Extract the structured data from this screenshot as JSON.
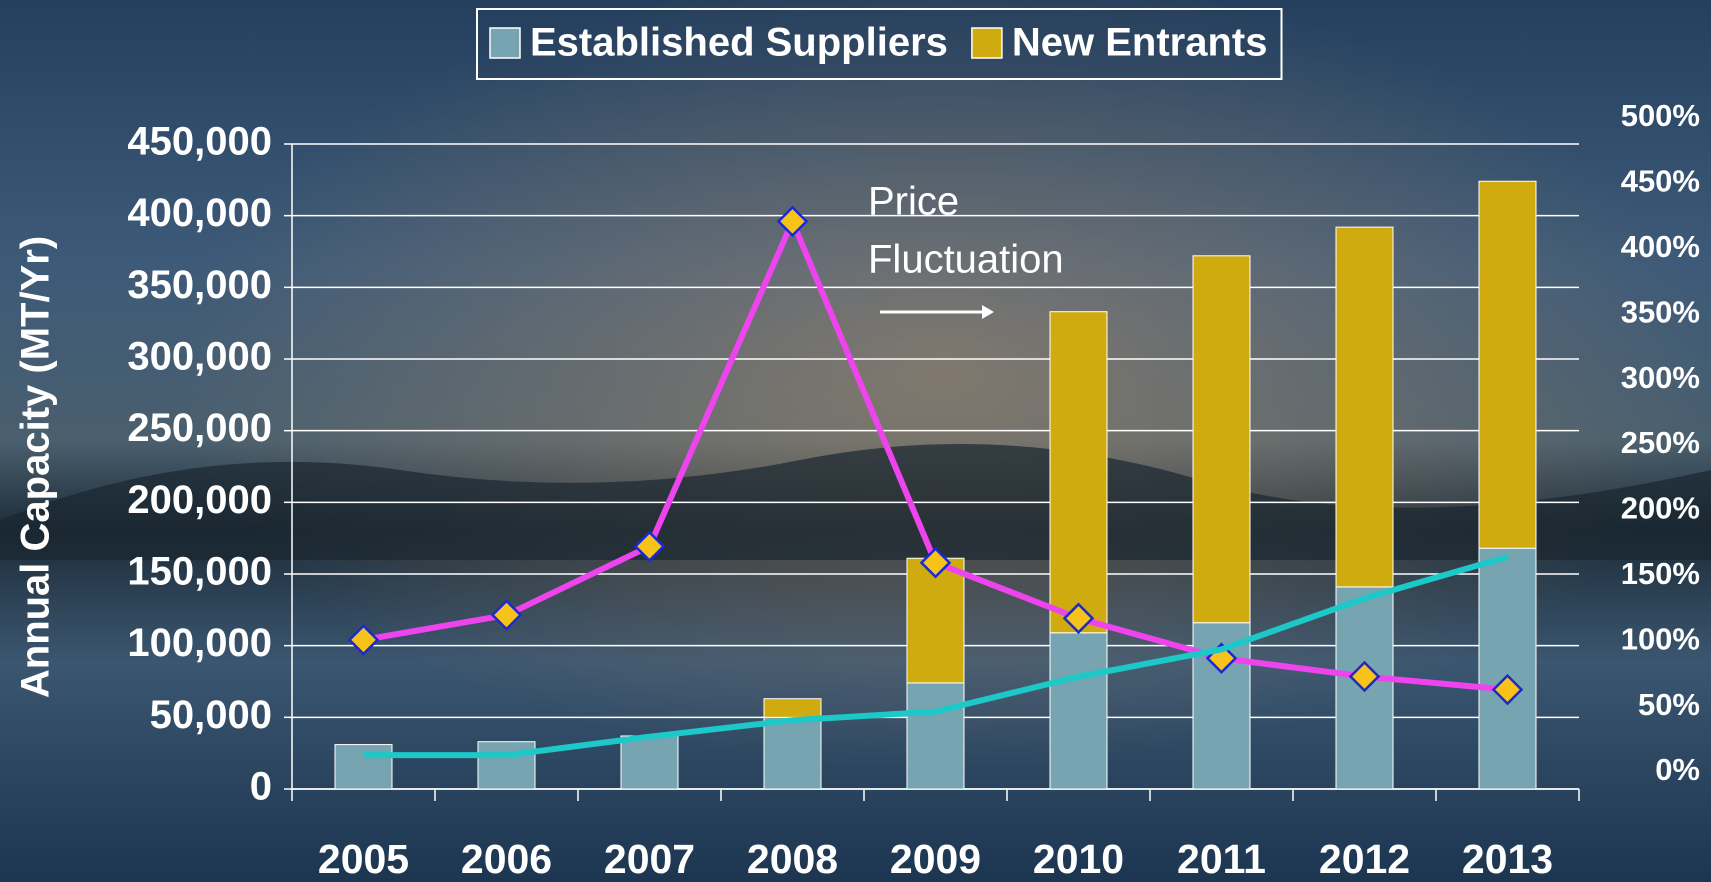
{
  "chart_data": {
    "type": "bar",
    "y_label": "Annual Capacity (MT/Yr)",
    "annotation": [
      "Price",
      "Fluctuation"
    ],
    "categories": [
      "2005",
      "2006",
      "2007",
      "2008",
      "2009",
      "2010",
      "2011",
      "2012",
      "2013"
    ],
    "series": [
      {
        "name": "Established Suppliers",
        "color": "#76a5b1",
        "values": [
          31000,
          33000,
          37000,
          50000,
          74000,
          109000,
          116000,
          141000,
          168000
        ]
      },
      {
        "name": "New Entrants",
        "color": "#cfab10",
        "values": [
          0,
          0,
          0,
          13000,
          87000,
          224000,
          256000,
          251000,
          256000
        ]
      },
      {
        "type": "line",
        "axis": "y2",
        "color": "#ee44ee",
        "marker": "diamond",
        "marker_color": "#f7c21a",
        "values": [
          101,
          120,
          172.5,
          421,
          160,
          117.5,
          87,
          73,
          63
        ]
      },
      {
        "type": "line",
        "color": "#1cc8c8",
        "values": [
          23600,
          23600,
          36500,
          48000,
          54000,
          78400,
          97400,
          133000,
          162000
        ]
      }
    ],
    "ylim": [
      0,
      450000
    ],
    "yticks": [
      {
        "value": 0,
        "label": "0"
      },
      {
        "value": 50000,
        "label": "50,000"
      },
      {
        "value": 100000,
        "label": "100,000"
      },
      {
        "value": 150000,
        "label": "150,000"
      },
      {
        "value": 200000,
        "label": "200,000"
      },
      {
        "value": 250000,
        "label": "250,000"
      },
      {
        "value": 300000,
        "label": "300,000"
      },
      {
        "value": 350000,
        "label": "350,000"
      },
      {
        "value": 400000,
        "label": "400,000"
      },
      {
        "value": 450000,
        "label": "450,000"
      }
    ],
    "y2lim": [
      0,
      500
    ],
    "y2ticks": [
      {
        "value": 0,
        "label": "0%"
      },
      {
        "value": 50,
        "label": "50%"
      },
      {
        "value": 100,
        "label": "100%"
      },
      {
        "value": 150,
        "label": "150%"
      },
      {
        "value": 200,
        "label": "200%"
      },
      {
        "value": 250,
        "label": "250%"
      },
      {
        "value": 300,
        "label": "300%"
      },
      {
        "value": 350,
        "label": "350%"
      },
      {
        "value": 400,
        "label": "400%"
      },
      {
        "value": 450,
        "label": "450%"
      },
      {
        "value": 500,
        "label": "500%"
      }
    ],
    "grid": true,
    "legend": "top"
  }
}
